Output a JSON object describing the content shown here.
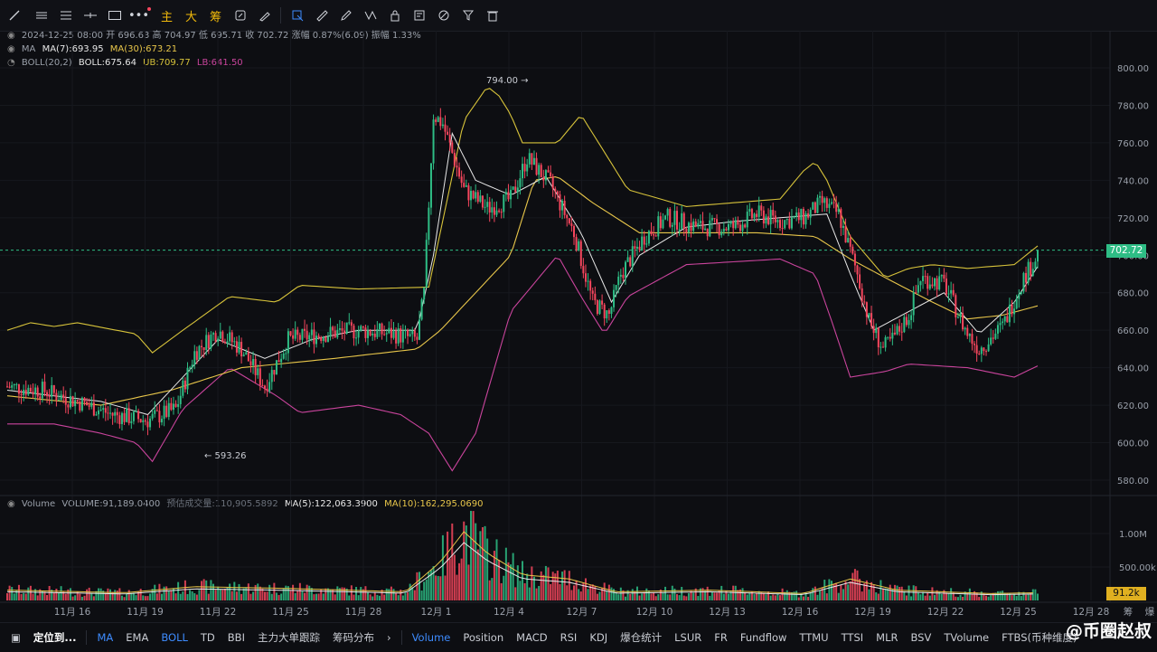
{
  "toolbar": {
    "icons": [
      "trendline-icon",
      "hline-icon",
      "parallel-icon",
      "crosshair-icon",
      "rect-icon",
      "more-icon"
    ],
    "cn_buttons": [
      "主",
      "大",
      "筹"
    ],
    "tool_icons": [
      "refresh-icon",
      "brush-icon",
      "select-icon",
      "ruler-icon",
      "pencil-icon",
      "pattern-icon",
      "lock-icon",
      "note-icon",
      "magic-icon",
      "filter-icon",
      "trash-icon"
    ]
  },
  "info": {
    "ohlc": "2024-12-25 08:00 开 696.63 高 704.97 低 695.71 收 702.72 涨幅 0.87%(6.09) 振幅 1.33%",
    "ma_label": "MA",
    "ma7": "MA(7):693.95",
    "ma30": "MA(30):673.21",
    "boll_label": "BOLL(20,2)",
    "boll": "BOLL:675.64",
    "ub": "UB:709.77",
    "lb": "LB:641.50",
    "vol_label": "Volume",
    "volume": "VOLUME:91,189.0400",
    "est": "预估成交量:110,905.5892",
    "vma5": "MA(5):122,063.3900",
    "vma10": "MA(10):162,295.0690"
  },
  "colors": {
    "up": "#2ebd85",
    "down": "#f6465d",
    "ma7": "#e8e8e8",
    "ma30": "#e8c64a",
    "ub": "#d6c23a",
    "lb": "#c9449c",
    "accent": "#3e8cff",
    "bg": "#0d0e12"
  },
  "chart_data": {
    "type": "candlestick",
    "price_ticks": [
      "800.00",
      "780.00",
      "760.00",
      "740.00",
      "720.00",
      "700.00",
      "680.00",
      "660.00",
      "640.00",
      "620.00",
      "600.00",
      "580.00"
    ],
    "ylim": [
      575,
      805
    ],
    "last_price": "702.72",
    "high_label": "794.00",
    "low_label": "593.26",
    "x_ticks": [
      "11月 16",
      "11月 19",
      "11月 22",
      "11月 25",
      "11月 28",
      "12月 1",
      "12月 4",
      "12月 7",
      "12月 10",
      "12月 13",
      "12月 16",
      "12月 19",
      "12月 22",
      "12月 25",
      "12月 28",
      "筹",
      "爆"
    ],
    "vol_ticks": [
      "1.00M",
      "500.00k"
    ],
    "vol_last": "91.2k",
    "close_anchors": [
      [
        0,
        630
      ],
      [
        15,
        628
      ],
      [
        30,
        622
      ],
      [
        45,
        615
      ],
      [
        60,
        612
      ],
      [
        72,
        618
      ],
      [
        80,
        648
      ],
      [
        90,
        660
      ],
      [
        100,
        650
      ],
      [
        110,
        630
      ],
      [
        120,
        655
      ],
      [
        135,
        658
      ],
      [
        150,
        660
      ],
      [
        165,
        658
      ],
      [
        175,
        655
      ],
      [
        178,
        680
      ],
      [
        182,
        775
      ],
      [
        186,
        770
      ],
      [
        195,
        735
      ],
      [
        205,
        725
      ],
      [
        215,
        730
      ],
      [
        222,
        752
      ],
      [
        232,
        738
      ],
      [
        242,
        712
      ],
      [
        250,
        675
      ],
      [
        257,
        668
      ],
      [
        262,
        690
      ],
      [
        272,
        710
      ],
      [
        282,
        720
      ],
      [
        295,
        715
      ],
      [
        310,
        715
      ],
      [
        320,
        722
      ],
      [
        330,
        718
      ],
      [
        340,
        720
      ],
      [
        348,
        728
      ],
      [
        355,
        722
      ],
      [
        363,
        690
      ],
      [
        368,
        665
      ],
      [
        374,
        650
      ],
      [
        378,
        655
      ],
      [
        385,
        668
      ],
      [
        390,
        688
      ],
      [
        400,
        685
      ],
      [
        410,
        658
      ],
      [
        415,
        650
      ],
      [
        425,
        662
      ],
      [
        434,
        688
      ],
      [
        440,
        700
      ]
    ],
    "ub_anchors": [
      [
        0,
        660
      ],
      [
        10,
        664
      ],
      [
        20,
        662
      ],
      [
        30,
        664
      ],
      [
        55,
        658
      ],
      [
        62,
        648
      ],
      [
        75,
        660
      ],
      [
        95,
        678
      ],
      [
        115,
        675
      ],
      [
        125,
        684
      ],
      [
        150,
        682
      ],
      [
        180,
        683
      ],
      [
        195,
        772
      ],
      [
        205,
        790
      ],
      [
        210,
        785
      ],
      [
        215,
        775
      ],
      [
        220,
        760
      ],
      [
        225,
        760
      ],
      [
        235,
        760
      ],
      [
        245,
        775
      ],
      [
        265,
        735
      ],
      [
        290,
        726
      ],
      [
        310,
        728
      ],
      [
        330,
        730
      ],
      [
        340,
        745
      ],
      [
        345,
        750
      ],
      [
        350,
        740
      ],
      [
        360,
        710
      ],
      [
        375,
        688
      ],
      [
        385,
        693
      ],
      [
        395,
        695
      ],
      [
        410,
        693
      ],
      [
        430,
        695
      ],
      [
        440,
        705
      ]
    ],
    "lb_anchors": [
      [
        0,
        610
      ],
      [
        20,
        610
      ],
      [
        40,
        605
      ],
      [
        55,
        600
      ],
      [
        62,
        590
      ],
      [
        75,
        618
      ],
      [
        95,
        640
      ],
      [
        115,
        625
      ],
      [
        125,
        616
      ],
      [
        150,
        620
      ],
      [
        168,
        615
      ],
      [
        180,
        605
      ],
      [
        190,
        585
      ],
      [
        200,
        605
      ],
      [
        215,
        670
      ],
      [
        235,
        700
      ],
      [
        245,
        678
      ],
      [
        255,
        658
      ],
      [
        265,
        678
      ],
      [
        290,
        695
      ],
      [
        330,
        698
      ],
      [
        345,
        690
      ],
      [
        352,
        665
      ],
      [
        360,
        635
      ],
      [
        375,
        638
      ],
      [
        385,
        642
      ],
      [
        410,
        640
      ],
      [
        430,
        635
      ],
      [
        440,
        641
      ]
    ],
    "ma30_anchors": [
      [
        0,
        625
      ],
      [
        40,
        620
      ],
      [
        70,
        628
      ],
      [
        100,
        640
      ],
      [
        140,
        645
      ],
      [
        175,
        650
      ],
      [
        185,
        660
      ],
      [
        200,
        680
      ],
      [
        215,
        700
      ],
      [
        225,
        740
      ],
      [
        235,
        742
      ],
      [
        250,
        728
      ],
      [
        270,
        712
      ],
      [
        290,
        712
      ],
      [
        320,
        712
      ],
      [
        345,
        710
      ],
      [
        360,
        698
      ],
      [
        375,
        688
      ],
      [
        395,
        675
      ],
      [
        410,
        666
      ],
      [
        425,
        668
      ],
      [
        440,
        673
      ]
    ],
    "ma7_anchors": [
      [
        0,
        628
      ],
      [
        20,
        625
      ],
      [
        40,
        622
      ],
      [
        60,
        615
      ],
      [
        75,
        635
      ],
      [
        90,
        655
      ],
      [
        110,
        645
      ],
      [
        130,
        655
      ],
      [
        150,
        660
      ],
      [
        175,
        660
      ],
      [
        182,
        700
      ],
      [
        190,
        765
      ],
      [
        200,
        740
      ],
      [
        215,
        732
      ],
      [
        230,
        742
      ],
      [
        245,
        712
      ],
      [
        258,
        675
      ],
      [
        270,
        700
      ],
      [
        290,
        715
      ],
      [
        310,
        718
      ],
      [
        330,
        720
      ],
      [
        350,
        722
      ],
      [
        360,
        690
      ],
      [
        370,
        660
      ],
      [
        385,
        670
      ],
      [
        400,
        680
      ],
      [
        415,
        658
      ],
      [
        430,
        675
      ],
      [
        440,
        694
      ]
    ],
    "volume_anchors": [
      [
        0,
        0.12
      ],
      [
        50,
        0.09
      ],
      [
        80,
        0.16
      ],
      [
        120,
        0.14
      ],
      [
        170,
        0.1
      ],
      [
        185,
        0.45
      ],
      [
        195,
        0.8
      ],
      [
        205,
        0.55
      ],
      [
        220,
        0.3
      ],
      [
        240,
        0.25
      ],
      [
        260,
        0.1
      ],
      [
        300,
        0.12
      ],
      [
        340,
        0.08
      ],
      [
        360,
        0.25
      ],
      [
        380,
        0.12
      ],
      [
        420,
        0.08
      ],
      [
        440,
        0.09
      ]
    ]
  },
  "bottom": {
    "tabs_left": [
      "定位到...",
      "MA",
      "EMA",
      "BOLL",
      "TD",
      "BBI",
      "主力大单跟踪",
      "筹码分布"
    ],
    "tabs_right": [
      "Volume",
      "Position",
      "MACD",
      "RSI",
      "KDJ",
      "爆仓统计",
      "LSUR",
      "FR",
      "Fundflow",
      "TTMU",
      "TTSI",
      "MLR",
      "BSV",
      "TVolume",
      "FTBS(币种维度)"
    ],
    "watermark": "@币圈赵叔"
  }
}
